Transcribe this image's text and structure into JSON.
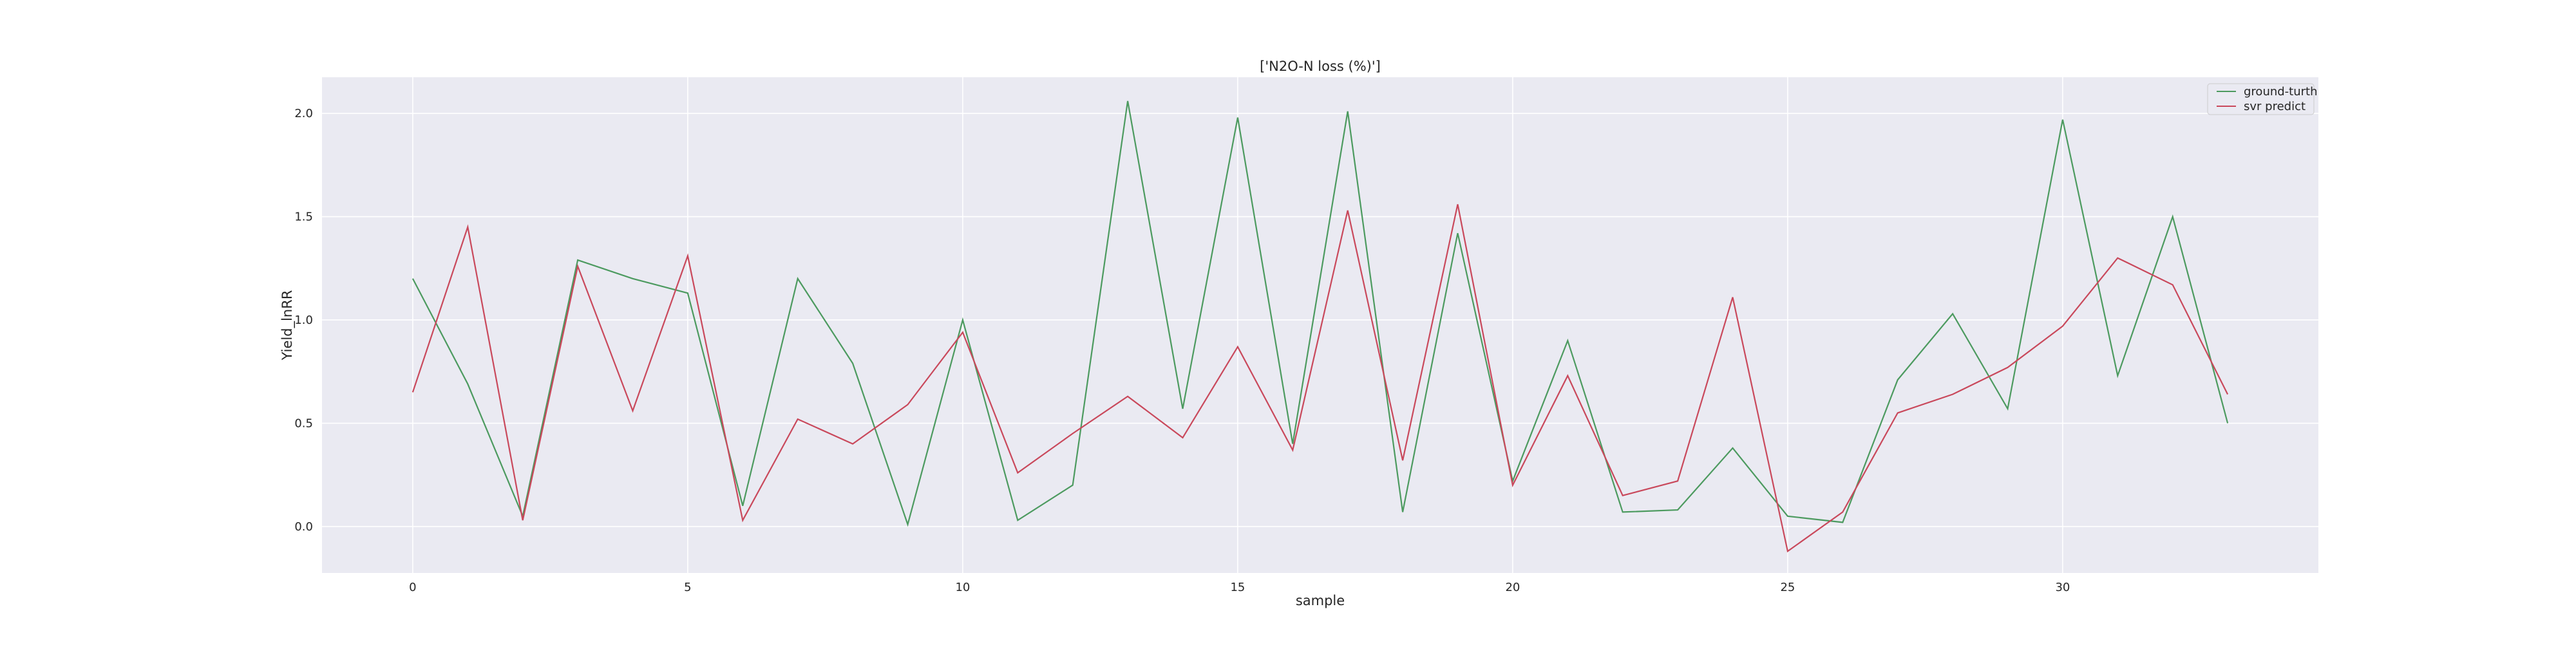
{
  "chart_data": {
    "type": "line",
    "title": "['N2O-N loss (%)']",
    "xlabel": "sample",
    "ylabel": "Yield_lnRR",
    "xlim": [
      -1.65,
      34.65
    ],
    "ylim": [
      -0.225,
      2.175
    ],
    "x_ticks": [
      "0",
      "5",
      "10",
      "15",
      "20",
      "25",
      "30"
    ],
    "y_ticks": [
      "0.0",
      "0.5",
      "1.0",
      "1.5",
      "2.0"
    ],
    "grid": true,
    "legend_position": "top-right",
    "x": [
      0,
      1,
      2,
      3,
      4,
      5,
      6,
      7,
      8,
      9,
      10,
      11,
      12,
      13,
      14,
      15,
      16,
      17,
      18,
      19,
      20,
      21,
      22,
      23,
      24,
      25,
      26,
      27,
      28,
      29,
      30,
      31,
      32,
      33
    ],
    "series": [
      {
        "name": "ground-turth",
        "color": "#4c9a5f",
        "values": [
          1.2,
          0.69,
          0.05,
          1.29,
          1.2,
          1.13,
          0.1,
          1.2,
          0.79,
          0.01,
          1.0,
          0.03,
          0.2,
          2.06,
          0.57,
          1.98,
          0.4,
          2.01,
          0.07,
          1.42,
          0.22,
          0.9,
          0.07,
          0.08,
          0.38,
          0.05,
          0.02,
          0.71,
          1.03,
          0.57,
          1.97,
          0.73,
          1.5,
          0.5
        ]
      },
      {
        "name": "svr predict",
        "color": "#c9485b",
        "values": [
          0.65,
          1.45,
          0.03,
          1.26,
          0.56,
          1.31,
          0.03,
          0.52,
          0.4,
          0.59,
          0.94,
          0.26,
          0.45,
          0.63,
          0.43,
          0.87,
          0.37,
          1.53,
          0.32,
          1.56,
          0.2,
          0.73,
          0.15,
          0.22,
          1.11,
          -0.12,
          0.07,
          0.55,
          0.64,
          0.77,
          0.97,
          1.3,
          1.17,
          0.64
        ]
      }
    ]
  },
  "colors": {
    "plot_background": "#eaeaf2",
    "grid": "#ffffff"
  }
}
